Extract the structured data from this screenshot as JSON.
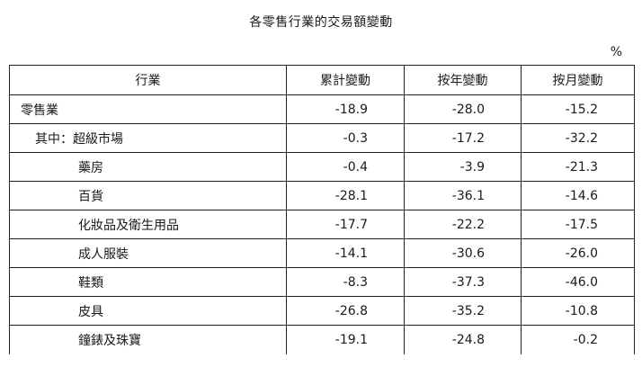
{
  "title": "各零售行業的交易額變動",
  "unit": "%",
  "headers": [
    "行業",
    "累計變動",
    "按年變動",
    "按月變動"
  ],
  "rows": [
    {
      "name": "零售業",
      "cumulative": "-18.9",
      "yoy": "-28.0",
      "mom": "-15.2"
    },
    {
      "name": "其中：超級市場",
      "cumulative": "-0.3",
      "yoy": "-17.2",
      "mom": "-32.2"
    },
    {
      "name": "藥房",
      "cumulative": "-0.4",
      "yoy": "-3.9",
      "mom": "-21.3"
    },
    {
      "name": "百貨",
      "cumulative": "-28.1",
      "yoy": "-36.1",
      "mom": "-14.6"
    },
    {
      "name": "化妝品及衛生用品",
      "cumulative": "-17.7",
      "yoy": "-22.2",
      "mom": "-17.5"
    },
    {
      "name": "成人服裝",
      "cumulative": "-14.1",
      "yoy": "-30.6",
      "mom": "-26.0"
    },
    {
      "name": "鞋類",
      "cumulative": "-8.3",
      "yoy": "-37.3",
      "mom": "-46.0"
    },
    {
      "name": "皮具",
      "cumulative": "-26.8",
      "yoy": "-35.2",
      "mom": "-10.8"
    },
    {
      "name": "鐘錶及珠寶",
      "cumulative": "-19.1",
      "yoy": "-24.8",
      "mom": "-0.2"
    }
  ]
}
